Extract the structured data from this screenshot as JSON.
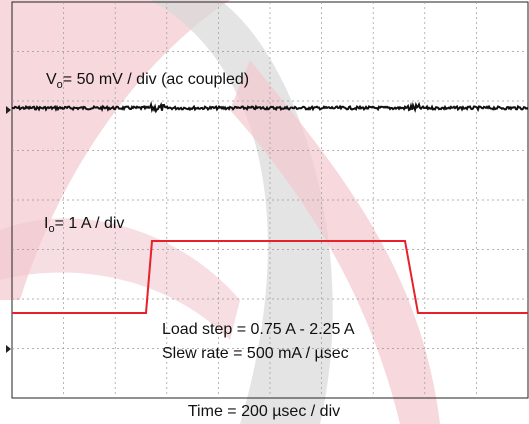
{
  "voltage_label": {
    "symbol": "V",
    "subscript": "o",
    "text": "= 50 mV / div (ac coupled)"
  },
  "current_label": {
    "symbol": "I",
    "subscript": "o",
    "text": "= 1 A / div"
  },
  "annotations": [
    "Load step = 0.75 A - 2.25 A",
    "Slew rate = 500 mA / µsec"
  ],
  "time_label": "Time = 200 µsec / div"
}
